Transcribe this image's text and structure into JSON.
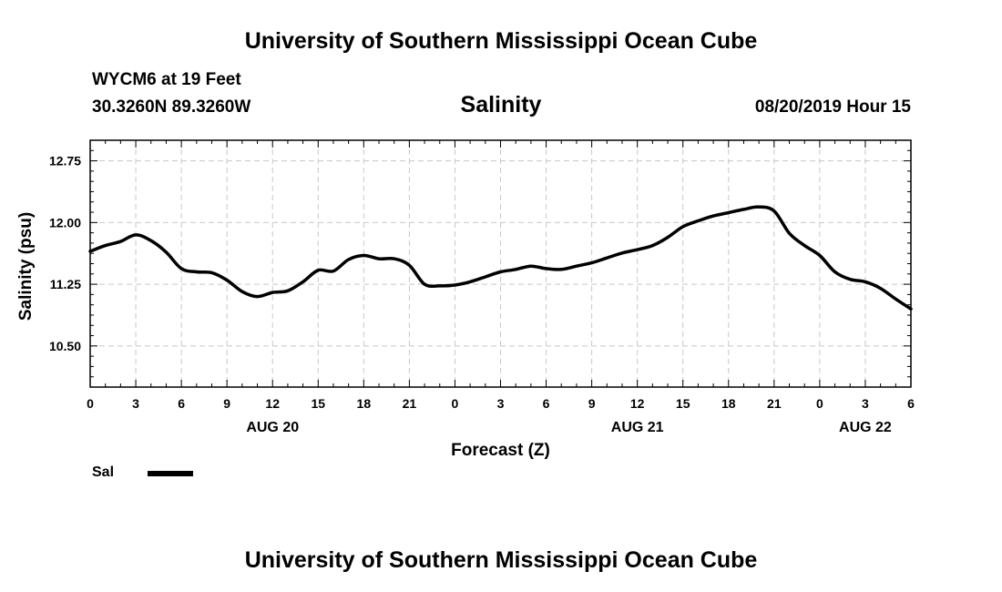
{
  "header": {
    "top_title": "University of Southern Mississippi Ocean Cube",
    "bottom_title": "University of Southern Mississippi Ocean Cube",
    "station": "WYCM6 at 19 Feet",
    "coords": "30.3260N 89.3260W",
    "plot_title": "Salinity",
    "timestamp": "08/20/2019 Hour 15"
  },
  "legend": {
    "label": "Sal",
    "color": "#000000"
  },
  "chart_data": {
    "type": "line",
    "title": "Salinity",
    "xlabel": "Forecast (Z)",
    "ylabel": "Salinity (psu)",
    "ylim": [
      10.0,
      13.0
    ],
    "yticks": [
      "12.75",
      "12.00",
      "11.25",
      "10.50"
    ],
    "ytick_values": [
      12.75,
      12.0,
      11.25,
      10.5
    ],
    "xlim": [
      0,
      54
    ],
    "xtick_hours": [
      0,
      3,
      6,
      9,
      12,
      15,
      18,
      21,
      24,
      27,
      30,
      33,
      36,
      39,
      42,
      45,
      48,
      51,
      54
    ],
    "xtick_labels": [
      "0",
      "3",
      "6",
      "9",
      "12",
      "15",
      "18",
      "21",
      "0",
      "3",
      "6",
      "9",
      "12",
      "15",
      "18",
      "21",
      "0",
      "3",
      "6"
    ],
    "date_labels": [
      {
        "text": "AUG 20",
        "hour": 12
      },
      {
        "text": "AUG 21",
        "hour": 36
      },
      {
        "text": "AUG 22",
        "hour": 51
      }
    ],
    "grid": true,
    "series": [
      {
        "name": "Sal",
        "color": "#000000",
        "x": [
          0,
          1,
          2,
          3,
          4,
          5,
          6,
          7,
          8,
          9,
          10,
          11,
          12,
          13,
          14,
          15,
          16,
          17,
          18,
          19,
          20,
          21,
          22,
          23,
          24,
          25,
          26,
          27,
          28,
          29,
          30,
          31,
          32,
          33,
          34,
          35,
          36,
          37,
          38,
          39,
          40,
          41,
          42,
          43,
          44,
          45,
          46,
          47,
          48,
          49,
          50,
          51,
          52,
          53,
          54
        ],
        "values": [
          11.65,
          11.72,
          11.77,
          11.85,
          11.78,
          11.64,
          11.44,
          11.4,
          11.39,
          11.3,
          11.16,
          11.1,
          11.15,
          11.17,
          11.28,
          11.42,
          11.41,
          11.55,
          11.6,
          11.56,
          11.56,
          11.48,
          11.25,
          11.23,
          11.24,
          11.28,
          11.34,
          11.4,
          11.43,
          11.47,
          11.44,
          11.43,
          11.47,
          11.51,
          11.57,
          11.63,
          11.67,
          11.72,
          11.82,
          11.95,
          12.02,
          12.08,
          12.12,
          12.16,
          12.19,
          12.14,
          11.87,
          11.72,
          11.6,
          11.4,
          11.31,
          11.28,
          11.2,
          11.07,
          10.95
        ]
      }
    ]
  }
}
